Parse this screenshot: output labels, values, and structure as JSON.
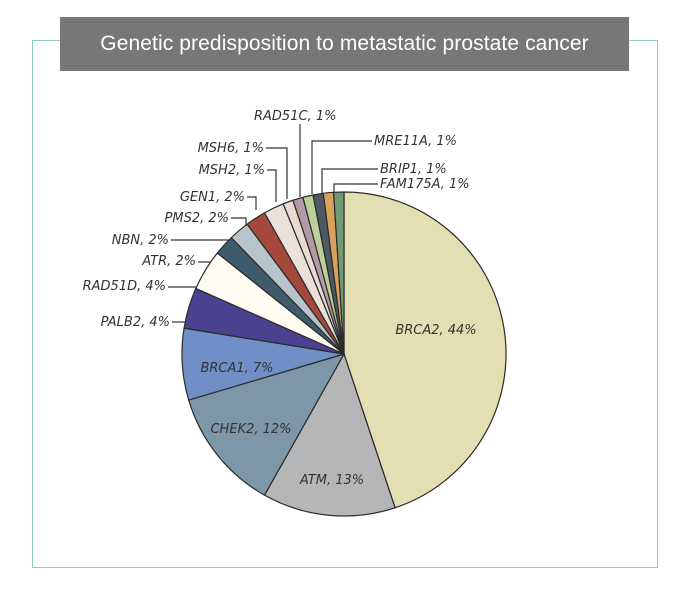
{
  "title": "Genetic predisposition to metastatic prostate cancer",
  "chart_data": {
    "type": "pie",
    "title": "Genetic predisposition to metastatic prostate cancer",
    "slices": [
      {
        "name": "BRCA2",
        "value": 44,
        "label": "BRCA2, 44%",
        "color": "#e3dfb3"
      },
      {
        "name": "ATM",
        "value": 13,
        "label": "ATM, 13%",
        "color": "#b5b6b8"
      },
      {
        "name": "CHEK2",
        "value": 12,
        "label": "CHEK2, 12%",
        "color": "#7d97a8"
      },
      {
        "name": "BRCA1",
        "value": 7,
        "label": "BRCA1, 7%",
        "color": "#6f8fc6"
      },
      {
        "name": "PALB2",
        "value": 4,
        "label": "PALB2, 4%",
        "color": "#4b4191"
      },
      {
        "name": "RAD51D",
        "value": 4,
        "label": "RAD51D, 4%",
        "color": "#fffdf2"
      },
      {
        "name": "ATR",
        "value": 2,
        "label": "ATR, 2%",
        "color": "#3e5c6b"
      },
      {
        "name": "NBN",
        "value": 2,
        "label": "NBN, 2%",
        "color": "#b8c4cc"
      },
      {
        "name": "PMS2",
        "value": 2,
        "label": "PMS2, 2%",
        "color": "#a4493b"
      },
      {
        "name": "GEN1",
        "value": 2,
        "label": "GEN1, 2%",
        "color": "#ece0da"
      },
      {
        "name": "MSH2",
        "value": 1,
        "label": "MSH2, 1%",
        "color": "#e8dcd2"
      },
      {
        "name": "MSH6",
        "value": 1,
        "label": "MSH6, 1%",
        "color": "#b49aa6"
      },
      {
        "name": "RAD51C",
        "value": 1,
        "label": "RAD51C, 1%",
        "color": "#bcd09a"
      },
      {
        "name": "MRE11A",
        "value": 1,
        "label": "MRE11A, 1%",
        "color": "#4e5a62"
      },
      {
        "name": "BRIP1",
        "value": 1,
        "label": "BRIP1, 1%",
        "color": "#d9a05e"
      },
      {
        "name": "FAM175A",
        "value": 1,
        "label": "FAM175A, 1%",
        "color": "#6f9a74"
      }
    ]
  }
}
